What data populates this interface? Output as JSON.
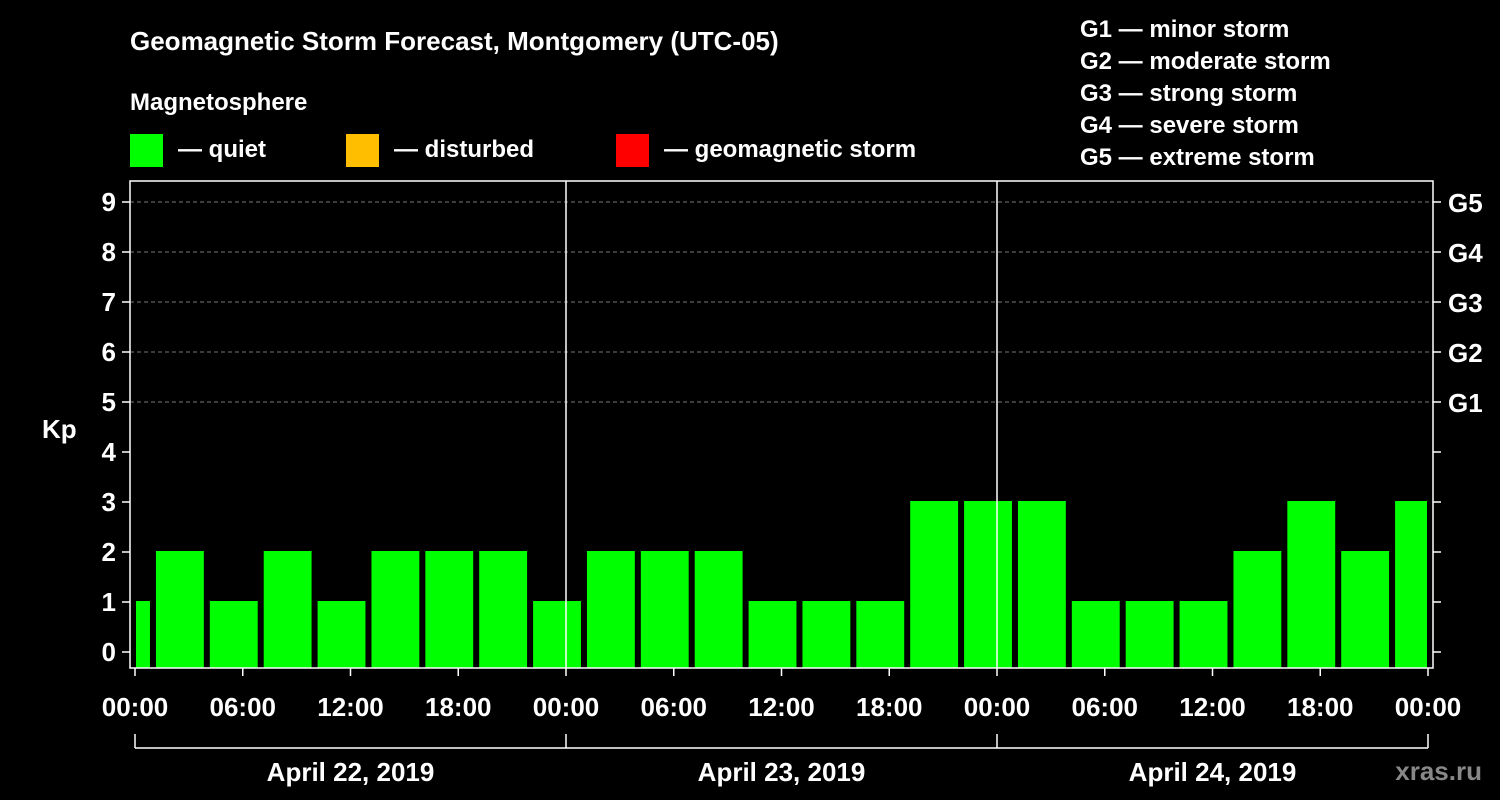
{
  "chart_data": {
    "type": "bar",
    "title": "Geomagnetic Storm Forecast, Montgomery (UTC-05)",
    "legend_title": "Magnetosphere",
    "legend": [
      {
        "label": "— quiet",
        "color": "#00ff00"
      },
      {
        "label": "— disturbed",
        "color": "#ffbf00"
      },
      {
        "label": "— geomagnetic storm",
        "color": "#ff0000"
      }
    ],
    "storm_scale": [
      "G1 — minor storm",
      "G2 — moderate storm",
      "G3 — strong storm",
      "G4 — severe storm",
      "G5 — extreme storm"
    ],
    "ylabel": "Kp",
    "ylim": [
      0,
      9
    ],
    "y_ticks": [
      "0",
      "1",
      "2",
      "3",
      "4",
      "5",
      "6",
      "7",
      "8",
      "9"
    ],
    "right_ticks": [
      {
        "kp": 5,
        "label": "G1"
      },
      {
        "kp": 6,
        "label": "G2"
      },
      {
        "kp": 7,
        "label": "G3"
      },
      {
        "kp": 8,
        "label": "G4"
      },
      {
        "kp": 9,
        "label": "G5"
      }
    ],
    "x_ticks": [
      {
        "hour": 0,
        "label": "00:00"
      },
      {
        "hour": 6,
        "label": "06:00"
      },
      {
        "hour": 12,
        "label": "12:00"
      },
      {
        "hour": 18,
        "label": "18:00"
      },
      {
        "hour": 24,
        "label": "00:00"
      },
      {
        "hour": 30,
        "label": "06:00"
      },
      {
        "hour": 36,
        "label": "12:00"
      },
      {
        "hour": 42,
        "label": "18:00"
      },
      {
        "hour": 48,
        "label": "00:00"
      },
      {
        "hour": 54,
        "label": "06:00"
      },
      {
        "hour": 60,
        "label": "12:00"
      },
      {
        "hour": 66,
        "label": "18:00"
      },
      {
        "hour": 72,
        "label": "00:00"
      }
    ],
    "days": [
      "April 22, 2019",
      "April 23, 2019",
      "April 24, 2019"
    ],
    "bars": [
      {
        "start": 0,
        "end": 1,
        "kp": 1
      },
      {
        "start": 1,
        "end": 4,
        "kp": 2
      },
      {
        "start": 4,
        "end": 7,
        "kp": 1
      },
      {
        "start": 7,
        "end": 10,
        "kp": 2
      },
      {
        "start": 10,
        "end": 13,
        "kp": 1
      },
      {
        "start": 13,
        "end": 16,
        "kp": 2
      },
      {
        "start": 16,
        "end": 19,
        "kp": 2
      },
      {
        "start": 19,
        "end": 22,
        "kp": 2
      },
      {
        "start": 22,
        "end": 25,
        "kp": 1
      },
      {
        "start": 25,
        "end": 28,
        "kp": 2
      },
      {
        "start": 28,
        "end": 31,
        "kp": 2
      },
      {
        "start": 31,
        "end": 34,
        "kp": 2
      },
      {
        "start": 34,
        "end": 37,
        "kp": 1
      },
      {
        "start": 37,
        "end": 40,
        "kp": 1
      },
      {
        "start": 40,
        "end": 43,
        "kp": 1
      },
      {
        "start": 43,
        "end": 46,
        "kp": 3
      },
      {
        "start": 46,
        "end": 49,
        "kp": 3
      },
      {
        "start": 49,
        "end": 52,
        "kp": 3
      },
      {
        "start": 52,
        "end": 55,
        "kp": 1
      },
      {
        "start": 55,
        "end": 58,
        "kp": 1
      },
      {
        "start": 58,
        "end": 61,
        "kp": 1
      },
      {
        "start": 61,
        "end": 64,
        "kp": 2
      },
      {
        "start": 64,
        "end": 67,
        "kp": 3
      },
      {
        "start": 67,
        "end": 70,
        "kp": 2
      },
      {
        "start": 70,
        "end": 72,
        "kp": 3
      }
    ],
    "bar_color": "#00ff00",
    "grid": true,
    "watermark": "xras.ru"
  }
}
